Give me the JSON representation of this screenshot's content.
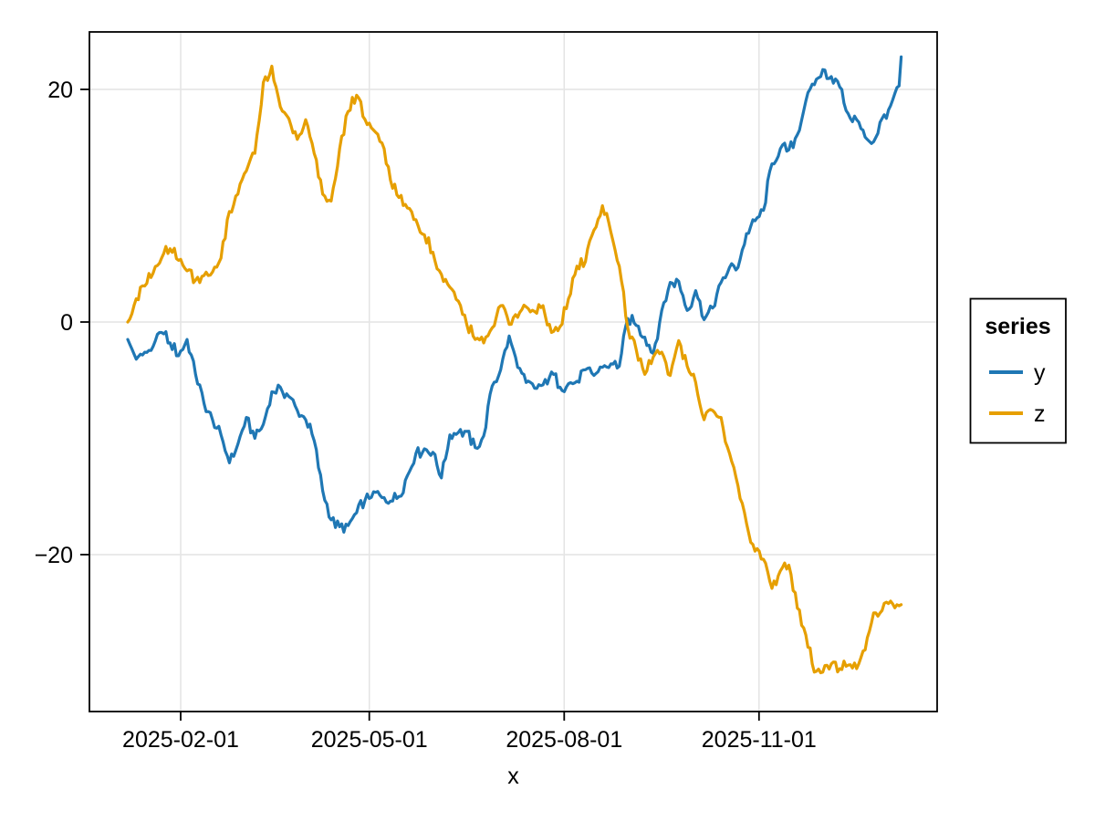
{
  "figure": {
    "background": "#ffffff"
  },
  "axis": {
    "xlabel": "x",
    "x_ticks": [
      {
        "label": "2025-02-01",
        "t": 31
      },
      {
        "label": "2025-05-01",
        "t": 120
      },
      {
        "label": "2025-08-01",
        "t": 212
      },
      {
        "label": "2025-11-01",
        "t": 304
      }
    ],
    "y_ticks": [
      {
        "label": "20",
        "v": 20
      },
      {
        "label": "0",
        "v": 0
      },
      {
        "label": "−20",
        "v": -20
      }
    ],
    "grid_color": "#e4e4e4",
    "spine_color": "#000000"
  },
  "legend": {
    "title": "series",
    "entries": [
      {
        "label": "y",
        "color": "#1f77b4"
      },
      {
        "label": "z",
        "color": "#e69f00"
      }
    ]
  },
  "chart_data": {
    "type": "line",
    "title": "",
    "xlabel": "x",
    "ylabel": "",
    "x_unit": "days since 2025-01-01",
    "x_start_date": "2025-01-07",
    "x_end_date": "2026-01-07",
    "x_tick_labels": [
      "2025-02-01",
      "2025-05-01",
      "2025-08-01",
      "2025-11-01"
    ],
    "y_tick_values": [
      20,
      0,
      -20
    ],
    "ylim": [
      -33.5,
      24.9
    ],
    "xlim_days": [
      -12,
      388
    ],
    "grid": true,
    "legend_position": "right-outside",
    "legend_title": "series",
    "texture_amplitude": 0.6,
    "t": [
      6,
      10,
      14,
      18,
      22,
      26,
      30,
      34,
      38,
      42,
      46,
      50,
      54,
      58,
      62,
      66,
      70,
      74,
      78,
      82,
      86,
      90,
      94,
      98,
      102,
      106,
      110,
      114,
      118,
      122,
      126,
      130,
      134,
      138,
      142,
      146,
      150,
      154,
      158,
      162,
      166,
      170,
      174,
      178,
      182,
      186,
      190,
      194,
      198,
      202,
      206,
      210,
      214,
      218,
      222,
      226,
      230,
      234,
      238,
      242,
      246,
      250,
      254,
      258,
      262,
      266,
      270,
      274,
      278,
      282,
      286,
      290,
      294,
      298,
      302,
      306,
      310,
      314,
      318,
      322,
      326,
      330,
      334,
      338,
      342,
      346,
      350,
      354,
      358,
      362,
      366,
      370,
      371
    ],
    "series": [
      {
        "name": "y",
        "color": "#1f77b4",
        "values": [
          -1.5,
          -3.2,
          -2.6,
          -2.1,
          -0.9,
          -1.8,
          -2.9,
          -1.5,
          -4.5,
          -7.0,
          -8.4,
          -9.7,
          -12.1,
          -10.5,
          -8.2,
          -10.0,
          -8.8,
          -6.0,
          -5.6,
          -6.4,
          -7.6,
          -8.4,
          -10.2,
          -14.5,
          -17.0,
          -17.6,
          -17.5,
          -16.4,
          -15.3,
          -14.6,
          -15.1,
          -15.4,
          -15.0,
          -13.2,
          -11.3,
          -10.9,
          -11.2,
          -13.4,
          -9.7,
          -9.5,
          -9.4,
          -10.8,
          -9.8,
          -5.5,
          -4.1,
          -1.2,
          -3.9,
          -5.2,
          -5.7,
          -5.4,
          -4.3,
          -5.6,
          -5.3,
          -5.1,
          -4.1,
          -4.6,
          -3.9,
          -3.6,
          -3.8,
          0.3,
          -0.3,
          -1.3,
          -2.7,
          1.0,
          3.4,
          3.5,
          1.0,
          2.7,
          0.2,
          1.2,
          3.4,
          4.7,
          4.7,
          7.6,
          8.7,
          9.6,
          13.6,
          14.9,
          14.8,
          16.1,
          19.0,
          20.4,
          21.7,
          21.1,
          20.2,
          17.9,
          17.4,
          15.9,
          15.5,
          17.5,
          18.6,
          20.3,
          22.8
        ]
      },
      {
        "name": "z",
        "color": "#e69f00",
        "values": [
          0.0,
          2.0,
          3.1,
          4.2,
          5.5,
          6.3,
          5.3,
          4.4,
          3.6,
          4.0,
          4.3,
          5.5,
          9.5,
          11.0,
          13.0,
          14.5,
          20.6,
          22.0,
          18.5,
          17.5,
          15.7,
          17.4,
          14.5,
          11.0,
          10.4,
          14.9,
          18.1,
          19.5,
          17.4,
          16.5,
          15.4,
          12.2,
          10.7,
          9.8,
          8.8,
          7.5,
          6.0,
          4.1,
          3.0,
          1.8,
          -0.2,
          -1.5,
          -1.8,
          -0.5,
          1.4,
          -0.2,
          0.4,
          1.3,
          0.9,
          1.4,
          -0.9,
          -0.4,
          2.0,
          4.8,
          5.2,
          7.9,
          10.0,
          7.7,
          4.8,
          -0.5,
          -2.4,
          -4.5,
          -3.0,
          -2.6,
          -4.6,
          -1.6,
          -3.8,
          -5.2,
          -8.4,
          -7.6,
          -8.2,
          -11.3,
          -14.1,
          -17.3,
          -19.7,
          -20.4,
          -22.9,
          -21.4,
          -20.9,
          -24.6,
          -26.9,
          -30.1,
          -30.1,
          -29.4,
          -29.8,
          -29.5,
          -29.8,
          -28.2,
          -25.0,
          -24.8,
          -24.0,
          -24.4,
          -24.3
        ]
      }
    ]
  }
}
